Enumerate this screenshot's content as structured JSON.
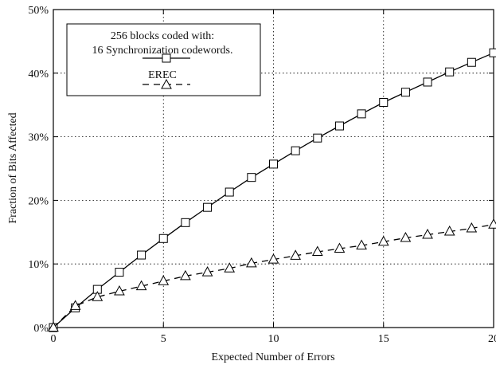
{
  "chart_data": {
    "type": "line",
    "xlabel": "Expected Number of Errors",
    "ylabel": "Fraction of Bits Affected",
    "xlim": [
      0,
      20
    ],
    "ylim": [
      0,
      50
    ],
    "x_ticks": [
      0,
      5,
      10,
      15,
      20
    ],
    "x_tick_labels": [
      "0",
      "5",
      "10",
      "15",
      "20"
    ],
    "y_ticks": [
      0,
      10,
      20,
      30,
      40,
      50
    ],
    "y_tick_labels": [
      "0%",
      "10%",
      "20%",
      "30%",
      "40%",
      "50%"
    ],
    "grid": true,
    "legend_position": "top-left",
    "x": [
      0,
      1,
      2,
      3,
      4,
      5,
      6,
      7,
      8,
      9,
      10,
      11,
      12,
      13,
      14,
      15,
      16,
      17,
      18,
      19,
      20
    ],
    "series": [
      {
        "name": "256 blocks coded with:\n16 Synchronization codewords.",
        "legend_lines": [
          "256 blocks coded with:",
          "16 Synchronization codewords."
        ],
        "marker": "square",
        "dash": "solid",
        "values": [
          0,
          3.1,
          6.0,
          8.7,
          11.4,
          14.0,
          16.5,
          18.9,
          21.3,
          23.6,
          25.7,
          27.8,
          29.8,
          31.7,
          33.6,
          35.4,
          37.0,
          38.6,
          40.2,
          41.7,
          43.2
        ]
      },
      {
        "name": "EREC",
        "legend_lines": [
          "EREC"
        ],
        "marker": "triangle",
        "dash": "dashed",
        "values": [
          0,
          3.4,
          4.8,
          5.7,
          6.5,
          7.3,
          8.1,
          8.7,
          9.3,
          10.1,
          10.7,
          11.3,
          11.9,
          12.4,
          12.9,
          13.5,
          14.1,
          14.6,
          15.1,
          15.6,
          16.2
        ]
      }
    ]
  }
}
